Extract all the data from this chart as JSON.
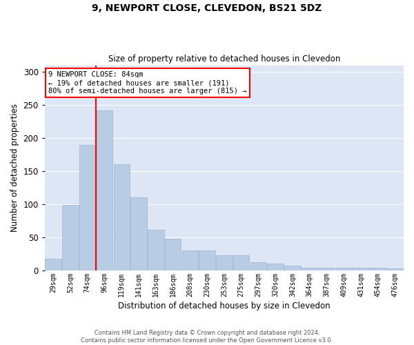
{
  "title1": "9, NEWPORT CLOSE, CLEVEDON, BS21 5DZ",
  "title2": "Size of property relative to detached houses in Clevedon",
  "xlabel": "Distribution of detached houses by size in Clevedon",
  "ylabel": "Number of detached properties",
  "categories": [
    "29sqm",
    "52sqm",
    "74sqm",
    "96sqm",
    "119sqm",
    "141sqm",
    "163sqm",
    "186sqm",
    "208sqm",
    "230sqm",
    "253sqm",
    "275sqm",
    "297sqm",
    "320sqm",
    "342sqm",
    "364sqm",
    "387sqm",
    "409sqm",
    "431sqm",
    "454sqm",
    "476sqm"
  ],
  "values": [
    18,
    99,
    190,
    242,
    161,
    110,
    61,
    48,
    30,
    30,
    23,
    23,
    13,
    10,
    7,
    4,
    4,
    4,
    4,
    4,
    3
  ],
  "bar_color": "#b8cce4",
  "bar_edge_color": "#9ab3d5",
  "annotation_text": "9 NEWPORT CLOSE: 84sqm\n← 19% of detached houses are smaller (191)\n80% of semi-detached houses are larger (815) →",
  "annotation_box_color": "white",
  "annotation_box_edge_color": "red",
  "line_color": "red",
  "footer1": "Contains HM Land Registry data © Crown copyright and database right 2024.",
  "footer2": "Contains public sector information licensed under the Open Government Licence v3.0.",
  "ylim": [
    0,
    310
  ],
  "background_color": "#dce6f5",
  "grid_color": "white"
}
